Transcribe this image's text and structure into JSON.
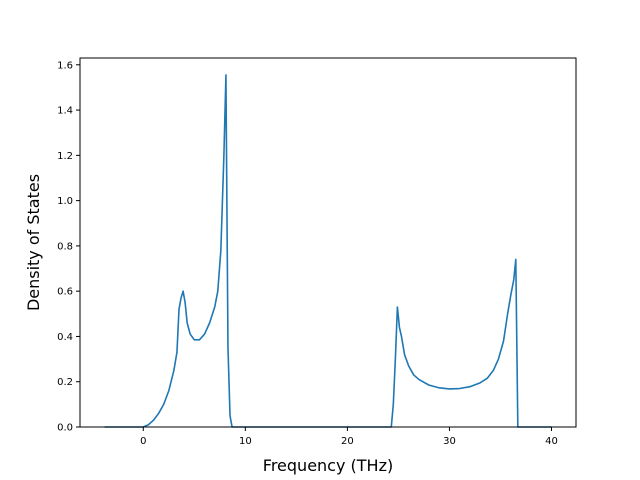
{
  "chart_data": {
    "type": "line",
    "title": "",
    "xlabel": "Frequency (THz)",
    "ylabel": "Density of States",
    "xlim": [
      -6.2,
      42.4
    ],
    "ylim": [
      0,
      1.63
    ],
    "grid": false,
    "xticks": [
      0,
      10,
      20,
      30,
      40
    ],
    "xtick_labels": [
      "0",
      "10",
      "20",
      "30",
      "40"
    ],
    "yticks": [
      0.0,
      0.2,
      0.4,
      0.6,
      0.8,
      1.0,
      1.2,
      1.4,
      1.6
    ],
    "ytick_labels": [
      "0.0",
      "0.2",
      "0.4",
      "0.6",
      "0.8",
      "1.0",
      "1.2",
      "1.4",
      "1.6"
    ],
    "series": [
      {
        "color": "#1f77b4",
        "x": [
          -3.8,
          -2,
          0,
          0.5,
          1.0,
          1.5,
          2.0,
          2.5,
          3.0,
          3.3,
          3.5,
          3.7,
          3.9,
          4.1,
          4.3,
          4.6,
          5.0,
          5.5,
          6.0,
          6.5,
          7.0,
          7.3,
          7.6,
          7.9,
          8.1,
          8.3,
          8.5,
          8.7,
          10,
          15,
          20,
          24.3,
          24.5,
          24.7,
          24.9,
          25.1,
          25.3,
          25.6,
          26.0,
          26.5,
          27.0,
          28,
          29,
          30,
          31,
          32,
          33,
          33.7,
          34.3,
          34.8,
          35.3,
          35.7,
          36.0,
          36.3,
          36.5,
          36.7,
          37.0,
          40
        ],
        "y": [
          0,
          0,
          0,
          0.01,
          0.03,
          0.06,
          0.1,
          0.16,
          0.25,
          0.33,
          0.52,
          0.57,
          0.6,
          0.55,
          0.46,
          0.41,
          0.385,
          0.385,
          0.41,
          0.46,
          0.53,
          0.6,
          0.78,
          1.2,
          1.555,
          0.35,
          0.05,
          0,
          0,
          0,
          0,
          0,
          0.1,
          0.3,
          0.53,
          0.44,
          0.4,
          0.32,
          0.27,
          0.23,
          0.21,
          0.185,
          0.173,
          0.168,
          0.17,
          0.178,
          0.195,
          0.215,
          0.25,
          0.3,
          0.38,
          0.5,
          0.58,
          0.65,
          0.74,
          0,
          0,
          0
        ]
      }
    ]
  }
}
